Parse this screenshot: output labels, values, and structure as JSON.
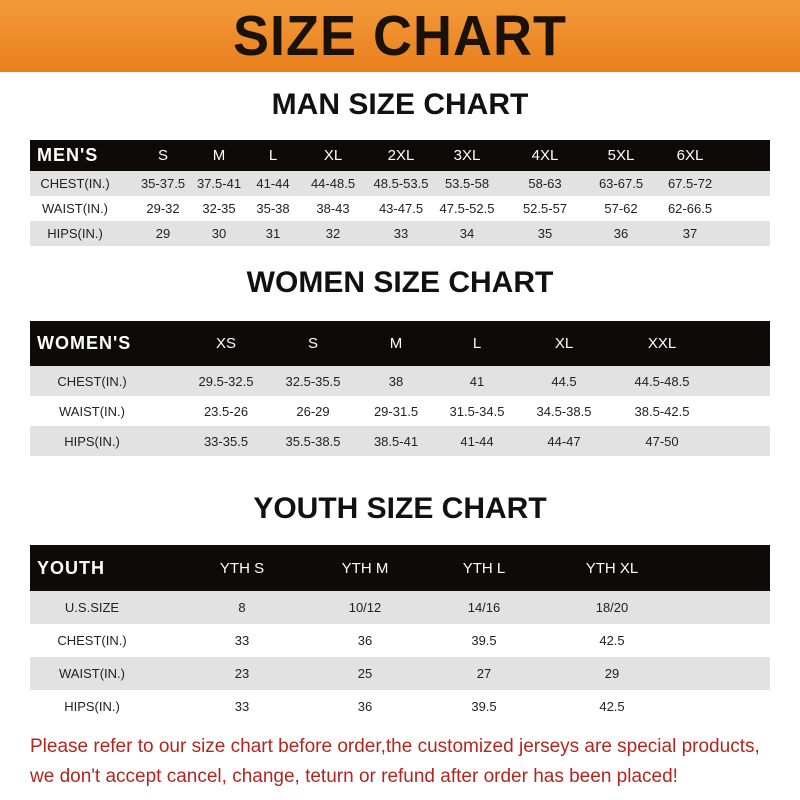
{
  "banner_title": "SIZE CHART",
  "men": {
    "title": "MAN SIZE CHART",
    "header": [
      "MEN'S",
      "S",
      "M",
      "L",
      "XL",
      "2XL",
      "3XL",
      "4XL",
      "5XL",
      "6XL"
    ],
    "rows": [
      [
        "CHEST(IN.)",
        "35-37.5",
        "37.5-41",
        "41-44",
        "44-48.5",
        "48.5-53.5",
        "53.5-58",
        "58-63",
        "63-67.5",
        "67.5-72"
      ],
      [
        "WAIST(IN.)",
        "29-32",
        "32-35",
        "35-38",
        "38-43",
        "43-47.5",
        "47.5-52.5",
        "52.5-57",
        "57-62",
        "62-66.5"
      ],
      [
        "HIPS(IN.)",
        "29",
        "30",
        "31",
        "32",
        "33",
        "34",
        "35",
        "36",
        "37"
      ]
    ]
  },
  "women": {
    "title": "WOMEN SIZE CHART",
    "header": [
      "WOMEN'S",
      "XS",
      "S",
      "M",
      "L",
      "XL",
      "XXL"
    ],
    "rows": [
      [
        "CHEST(IN.)",
        "29.5-32.5",
        "32.5-35.5",
        "38",
        "41",
        "44.5",
        "44.5-48.5"
      ],
      [
        "WAIST(IN.)",
        "23.5-26",
        "26-29",
        "29-31.5",
        "31.5-34.5",
        "34.5-38.5",
        "38.5-42.5"
      ],
      [
        "HIPS(IN.)",
        "33-35.5",
        "35.5-38.5",
        "38.5-41",
        "41-44",
        "44-47",
        "47-50"
      ]
    ]
  },
  "youth": {
    "title": "YOUTH SIZE CHART",
    "header": [
      "YOUTH",
      "YTH S",
      "YTH M",
      "YTH L",
      "YTH XL"
    ],
    "rows": [
      [
        "U.S.SIZE",
        "8",
        "10/12",
        "14/16",
        "18/20"
      ],
      [
        "CHEST(IN.)",
        "33",
        "36",
        "39.5",
        "42.5"
      ],
      [
        "WAIST(IN.)",
        "23",
        "25",
        "27",
        "29"
      ],
      [
        "HIPS(IN.)",
        "33",
        "36",
        "39.5",
        "42.5"
      ]
    ]
  },
  "footer": {
    "line1": "Please refer to our size chart before order,the customized jerseys are special products,",
    "line2": "we don't accept cancel, change, teturn or refund after order has been placed!"
  },
  "colors": {
    "banner": "#ee8a2a",
    "header_row": "#0d0a09",
    "stripe": "#e2e2e2",
    "footer_text": "#b3261e"
  }
}
